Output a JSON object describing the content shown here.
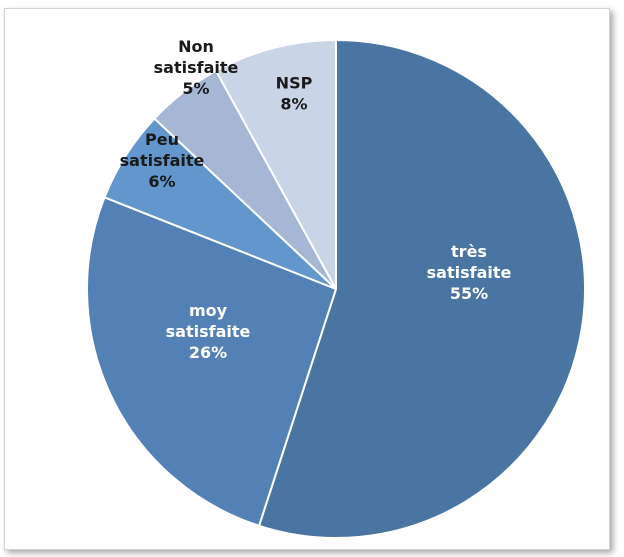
{
  "chart_data": {
    "type": "pie",
    "title": "",
    "start_angle_deg": 0,
    "direction": "clockwise",
    "slices": [
      {
        "label_lines": [
          "très",
          "satisfaite",
          "55%"
        ],
        "value": 55,
        "color": "#4a75a2",
        "text_color": "#ffffff"
      },
      {
        "label_lines": [
          "moy",
          "satisfaite",
          "26%"
        ],
        "value": 26,
        "color": "#5481b5",
        "text_color": "#ffffff"
      },
      {
        "label_lines": [
          "Peu",
          "satisfaite",
          "6%"
        ],
        "value": 6,
        "color": "#6396cc",
        "text_color": "#1a1a1a"
      },
      {
        "label_lines": [
          "Non",
          "satisfaite",
          "5%"
        ],
        "value": 5,
        "color": "#a6b6d5",
        "text_color": "#1a1a1a"
      },
      {
        "label_lines": [
          "NSP",
          "8%"
        ],
        "value": 8,
        "color": "#c9d4e6",
        "text_color": "#1a1a1a"
      }
    ],
    "legend": "none",
    "slice_border_color": "#ffffff"
  }
}
